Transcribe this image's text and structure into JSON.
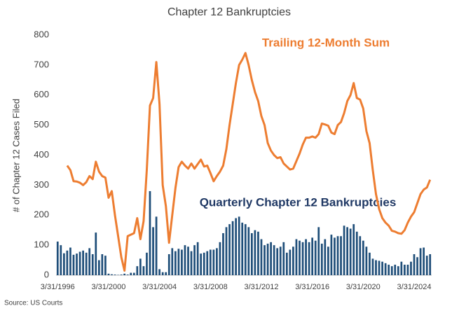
{
  "chart_data": {
    "type": "bar_line",
    "title": "Chapter 12 Bankruptcies",
    "y_label": "# of Chapter 12 Cases Filed",
    "source": "Source: US Courts",
    "categories": [
      "3/31/1996",
      null,
      null,
      null,
      null,
      null,
      null,
      null,
      null,
      null,
      null,
      null,
      null,
      null,
      null,
      null,
      "3/31/2000",
      null,
      null,
      null,
      null,
      null,
      null,
      null,
      null,
      null,
      null,
      null,
      null,
      null,
      null,
      null,
      "3/31/2004",
      null,
      null,
      null,
      null,
      null,
      null,
      null,
      null,
      null,
      null,
      null,
      null,
      null,
      null,
      null,
      "3/31/2008",
      null,
      null,
      null,
      null,
      null,
      null,
      null,
      null,
      null,
      null,
      null,
      null,
      null,
      null,
      null,
      "3/31/2012",
      null,
      null,
      null,
      null,
      null,
      null,
      null,
      null,
      null,
      null,
      null,
      null,
      null,
      null,
      null,
      "3/31/2016",
      null,
      null,
      null,
      null,
      null,
      null,
      null,
      null,
      null,
      null,
      null,
      null,
      null,
      null,
      null,
      "3/31/2020",
      null,
      null,
      null,
      null,
      null,
      null,
      null,
      null,
      null,
      null,
      null,
      null,
      null,
      null,
      null,
      "3/31/2024",
      null,
      null,
      null,
      null,
      null
    ],
    "series": [
      {
        "name": "Quarterly Chapter 12 Bankruptcies",
        "type": "bar",
        "color": "#1f4e79",
        "values": [
          112,
          100,
          73,
          82,
          92,
          68,
          72,
          78,
          82,
          75,
          90,
          70,
          142,
          50,
          70,
          65,
          5,
          3,
          2,
          1,
          2,
          5,
          2,
          8,
          8,
          30,
          55,
          30,
          75,
          280,
          160,
          195,
          20,
          10,
          10,
          70,
          90,
          80,
          88,
          85,
          100,
          95,
          80,
          100,
          110,
          72,
          75,
          80,
          85,
          85,
          90,
          110,
          140,
          160,
          170,
          180,
          190,
          195,
          175,
          170,
          160,
          140,
          150,
          145,
          120,
          100,
          105,
          110,
          100,
          90,
          95,
          110,
          75,
          85,
          95,
          120,
          115,
          110,
          120,
          110,
          125,
          115,
          160,
          105,
          120,
          95,
          135,
          125,
          130,
          130,
          165,
          160,
          155,
          170,
          145,
          130,
          115,
          95,
          75,
          55,
          50,
          48,
          45,
          40,
          35,
          30,
          35,
          30,
          45,
          35,
          35,
          45,
          70,
          60,
          90,
          92,
          65,
          70
        ]
      },
      {
        "name": "Trailing 12-Month Sum",
        "type": "line",
        "color": "#ed7d31",
        "values": [
          null,
          null,
          null,
          365,
          350,
          313,
          312,
          308,
          300,
          310,
          330,
          320,
          378,
          345,
          330,
          325,
          258,
          280,
          200,
          130,
          60,
          15,
          130,
          135,
          140,
          190,
          120,
          180,
          350,
          565,
          590,
          710,
          570,
          300,
          230,
          108,
          200,
          290,
          360,
          378,
          365,
          355,
          372,
          355,
          370,
          385,
          362,
          365,
          340,
          313,
          330,
          345,
          365,
          420,
          500,
          570,
          640,
          700,
          718,
          740,
          700,
          650,
          610,
          580,
          530,
          500,
          440,
          415,
          400,
          390,
          393,
          372,
          362,
          352,
          355,
          380,
          405,
          435,
          458,
          458,
          462,
          458,
          470,
          505,
          502,
          498,
          475,
          470,
          500,
          510,
          540,
          580,
          600,
          640,
          590,
          585,
          555,
          480,
          440,
          350,
          270,
          220,
          190,
          175,
          165,
          148,
          145,
          140,
          138,
          150,
          175,
          195,
          210,
          240,
          270,
          285,
          292,
          318
        ]
      }
    ],
    "ylim": [
      0,
      800
    ],
    "yticks": [
      0,
      100,
      200,
      300,
      400,
      500,
      600,
      700,
      800
    ],
    "grid": false
  }
}
